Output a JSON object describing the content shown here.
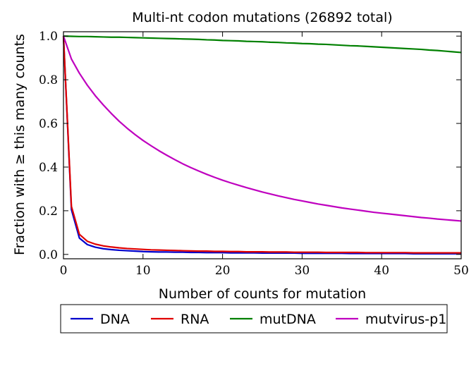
{
  "chart_data": {
    "type": "line",
    "title": "Multi-nt codon mutations (26892 total)",
    "xlabel": "Number of counts for mutation",
    "ylabel": "Fraction with ≥ this many counts",
    "xlim": [
      0,
      50
    ],
    "ylim": [
      -0.02,
      1.02
    ],
    "x_ticks": [
      0,
      10,
      20,
      30,
      40,
      50
    ],
    "x_tick_labels": [
      "0",
      "10",
      "20",
      "30",
      "40",
      "50"
    ],
    "y_ticks": [
      0.0,
      0.2,
      0.4,
      0.6,
      0.8,
      1.0
    ],
    "y_tick_labels": [
      "0.0",
      "0.2",
      "0.4",
      "0.6",
      "0.8",
      "1.0"
    ],
    "grid": false,
    "legend_placement": "below",
    "x": [
      0,
      1,
      2,
      3,
      4,
      5,
      6,
      7,
      8,
      9,
      10,
      11,
      12,
      13,
      14,
      15,
      16,
      17,
      18,
      19,
      20,
      21,
      22,
      23,
      24,
      25,
      26,
      27,
      28,
      29,
      30,
      31,
      32,
      33,
      34,
      35,
      36,
      37,
      38,
      39,
      40,
      41,
      42,
      43,
      44,
      45,
      46,
      47,
      48,
      49,
      50
    ],
    "series": [
      {
        "name": "DNA",
        "color": "#0000cc",
        "values": [
          1.0,
          0.205,
          0.075,
          0.045,
          0.033,
          0.026,
          0.022,
          0.019,
          0.017,
          0.015,
          0.013,
          0.012,
          0.011,
          0.011,
          0.01,
          0.01,
          0.009,
          0.009,
          0.008,
          0.008,
          0.008,
          0.007,
          0.007,
          0.007,
          0.007,
          0.006,
          0.006,
          0.006,
          0.006,
          0.006,
          0.005,
          0.005,
          0.005,
          0.005,
          0.005,
          0.005,
          0.004,
          0.004,
          0.004,
          0.004,
          0.004,
          0.004,
          0.004,
          0.004,
          0.003,
          0.003,
          0.003,
          0.003,
          0.003,
          0.003,
          0.003
        ]
      },
      {
        "name": "RNA",
        "color": "#e00000",
        "values": [
          1.0,
          0.22,
          0.092,
          0.06,
          0.047,
          0.039,
          0.034,
          0.03,
          0.027,
          0.025,
          0.023,
          0.021,
          0.02,
          0.019,
          0.018,
          0.017,
          0.016,
          0.015,
          0.015,
          0.014,
          0.014,
          0.013,
          0.013,
          0.012,
          0.012,
          0.012,
          0.011,
          0.011,
          0.011,
          0.01,
          0.01,
          0.01,
          0.01,
          0.009,
          0.009,
          0.009,
          0.009,
          0.009,
          0.008,
          0.008,
          0.008,
          0.008,
          0.008,
          0.008,
          0.007,
          0.007,
          0.007,
          0.007,
          0.007,
          0.007,
          0.007
        ]
      },
      {
        "name": "mutDNA",
        "color": "#008000",
        "values": [
          1.0,
          0.999,
          0.998,
          0.998,
          0.997,
          0.996,
          0.995,
          0.995,
          0.994,
          0.993,
          0.992,
          0.991,
          0.99,
          0.989,
          0.988,
          0.987,
          0.986,
          0.985,
          0.983,
          0.982,
          0.98,
          0.979,
          0.978,
          0.976,
          0.975,
          0.974,
          0.972,
          0.971,
          0.969,
          0.968,
          0.966,
          0.965,
          0.963,
          0.962,
          0.96,
          0.958,
          0.956,
          0.955,
          0.953,
          0.951,
          0.949,
          0.947,
          0.945,
          0.943,
          0.941,
          0.939,
          0.936,
          0.934,
          0.931,
          0.928,
          0.925
        ]
      },
      {
        "name": "mutvirus-p1",
        "color": "#bf00bf",
        "values": [
          1.0,
          0.895,
          0.83,
          0.775,
          0.727,
          0.685,
          0.646,
          0.61,
          0.578,
          0.549,
          0.522,
          0.498,
          0.475,
          0.454,
          0.434,
          0.415,
          0.398,
          0.382,
          0.367,
          0.353,
          0.34,
          0.328,
          0.317,
          0.306,
          0.296,
          0.286,
          0.277,
          0.268,
          0.26,
          0.252,
          0.245,
          0.238,
          0.231,
          0.225,
          0.219,
          0.213,
          0.208,
          0.203,
          0.198,
          0.193,
          0.189,
          0.185,
          0.181,
          0.177,
          0.173,
          0.169,
          0.166,
          0.162,
          0.159,
          0.156,
          0.153
        ]
      }
    ]
  }
}
